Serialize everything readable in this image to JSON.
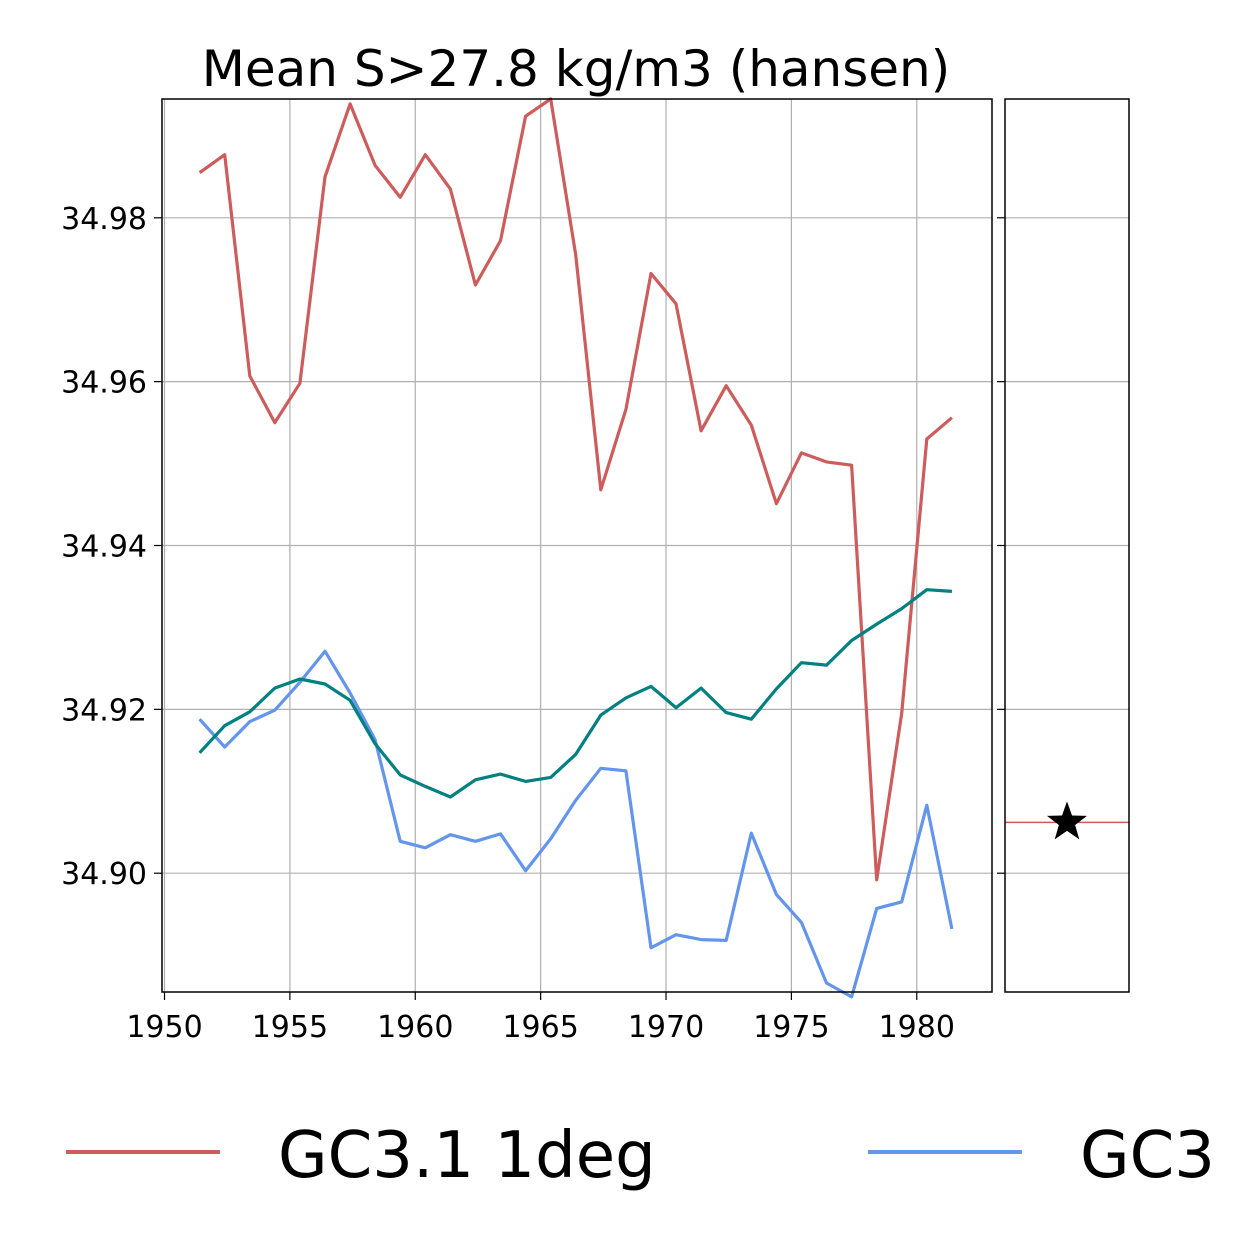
{
  "chart_data": {
    "type": "line",
    "title": "Mean S>27.8 kg/m3 (hansen)",
    "xlabel": "",
    "ylabel": "",
    "xlim": [
      1949.9,
      1983
    ],
    "ylim": [
      34.8855,
      34.9945
    ],
    "xticks": [
      1950,
      1955,
      1960,
      1965,
      1970,
      1975,
      1980
    ],
    "yticks": [
      34.9,
      34.92,
      34.94,
      34.96,
      34.98
    ],
    "ytick_labels": [
      "34.90",
      "34.92",
      "34.94",
      "34.96",
      "34.98"
    ],
    "grid": true,
    "legend_position": "bottom",
    "x": [
      1951.4,
      1952.4,
      1953.4,
      1954.4,
      1955.4,
      1956.4,
      1957.4,
      1958.4,
      1959.4,
      1960.4,
      1961.4,
      1962.4,
      1963.4,
      1964.4,
      1965.4,
      1966.4,
      1967.4,
      1968.4,
      1969.4,
      1970.4,
      1971.4,
      1972.4,
      1973.4,
      1974.4,
      1975.4,
      1976.4,
      1977.4,
      1978.4,
      1979.4,
      1980.4,
      1981.4
    ],
    "series": [
      {
        "name": "GC3.1 1deg",
        "color": "#cd5c5c",
        "values": [
          34.9855,
          34.9877,
          34.9607,
          34.955,
          34.9598,
          34.985,
          34.9939,
          34.9864,
          34.9825,
          34.9877,
          34.9835,
          34.9718,
          34.9772,
          34.9924,
          34.9945,
          34.9755,
          34.9468,
          34.9566,
          34.9732,
          34.9695,
          34.954,
          34.9595,
          34.9547,
          34.9451,
          34.9513,
          34.9502,
          34.9498,
          34.8992,
          34.9195,
          34.953,
          34.9556
        ]
      },
      {
        "name": "GC3",
        "color": "#6495ed",
        "values": [
          34.9188,
          34.9154,
          34.9185,
          34.9199,
          34.9233,
          34.9271,
          34.922,
          34.9163,
          34.9039,
          34.9031,
          34.9047,
          34.9039,
          34.9048,
          34.9003,
          34.9042,
          34.9089,
          34.9128,
          34.9125,
          34.8909,
          34.8925,
          34.8919,
          34.8918,
          34.9049,
          34.8974,
          34.894,
          34.8866,
          34.8849,
          34.8957,
          34.8965,
          34.9083,
          34.8932
        ]
      },
      {
        "color": "#008080",
        "values": [
          34.9147,
          34.918,
          34.9197,
          34.9226,
          34.9237,
          34.9231,
          34.9211,
          34.9158,
          34.912,
          34.9106,
          34.9093,
          34.9114,
          34.9121,
          34.9112,
          34.9117,
          34.9145,
          34.9193,
          34.9214,
          34.9228,
          34.9202,
          34.9226,
          34.9196,
          34.9188,
          34.9225,
          34.9257,
          34.9254,
          34.9284,
          34.9304,
          34.9323,
          34.9346,
          34.9344
        ]
      }
    ],
    "side_panel": {
      "reference_line": {
        "y": 34.9062,
        "color": "#cd5c5c"
      },
      "marker": {
        "symbol": "star",
        "y": 34.9062,
        "color": "#000000"
      }
    }
  }
}
